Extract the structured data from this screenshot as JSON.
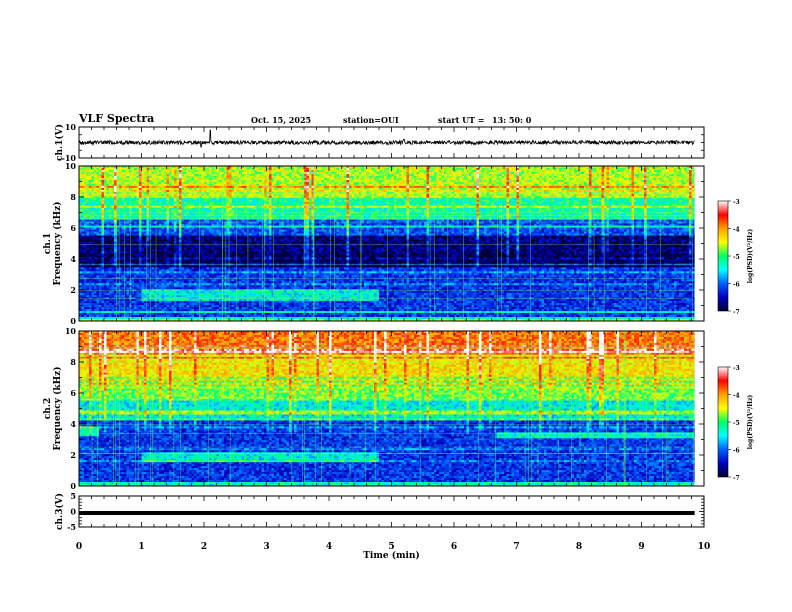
{
  "header": {
    "title": "VLF Spectra",
    "date": "Oct. 15, 2025",
    "station_label": "station=OUI",
    "start_label": "start UT =",
    "start_time": "13: 50: 0"
  },
  "colorbar": {
    "label": "log(PSD)(V²/Hz)",
    "ticks": [
      "-3",
      "-4",
      "-5",
      "-6",
      "-7"
    ],
    "colors": [
      "#ffffff",
      "#ff0000",
      "#ffa000",
      "#ffff00",
      "#00ff60",
      "#00ffff",
      "#0060ff",
      "#0000c0",
      "#000030"
    ]
  },
  "chart_data": [
    {
      "type": "line",
      "name": "ch1-waveform",
      "ylabel": "ch.1(V)",
      "ylim": [
        -10,
        10
      ],
      "y_tick_labels": [
        "10",
        "-10"
      ],
      "xlim": [
        0,
        10
      ],
      "baseline_value": 0,
      "noise_amplitude": 1.2,
      "spikes": [
        {
          "x": 2.1,
          "y": 8
        },
        {
          "x": 1.95,
          "y": -3
        },
        {
          "x": 5.2,
          "y": 2
        }
      ]
    },
    {
      "type": "heatmap",
      "name": "ch1-spectrogram",
      "ylabel": "ch.1 Frequency (kHz)",
      "ylim": [
        0,
        10
      ],
      "xlim": [
        0,
        10
      ],
      "y_tick_labels": [
        "0",
        "2",
        "4",
        "6",
        "8",
        "10"
      ],
      "z_range": [
        -7,
        -3
      ],
      "bands": [
        {
          "f_low": 8.0,
          "f_high": 10.0,
          "log_psd": -4.9
        },
        {
          "f_low": 6.5,
          "f_high": 8.0,
          "log_psd": -5.4
        },
        {
          "f_low": 5.5,
          "f_high": 6.5,
          "log_psd": -6.2
        },
        {
          "f_low": 4.3,
          "f_high": 5.5,
          "log_psd": -6.8
        },
        {
          "f_low": 3.5,
          "f_high": 4.3,
          "log_psd": -6.9
        },
        {
          "f_low": 0.3,
          "f_high": 3.5,
          "log_psd": -6.3
        },
        {
          "f_low": 0.0,
          "f_high": 0.3,
          "log_psd": -5.5
        }
      ],
      "features": [
        {
          "x_start": 1.0,
          "x_end": 4.8,
          "f_low": 1.3,
          "f_high": 2.1,
          "log_psd": -5.6
        }
      ]
    },
    {
      "type": "heatmap",
      "name": "ch2-spectrogram",
      "ylabel": "ch.2 Frequency (kHz)",
      "ylim": [
        0,
        10
      ],
      "xlim": [
        0,
        10
      ],
      "y_tick_labels": [
        "0",
        "2",
        "4",
        "6",
        "8",
        "10"
      ],
      "z_range": [
        -7,
        -3
      ],
      "bands": [
        {
          "f_low": 8.5,
          "f_high": 10.0,
          "log_psd": -4.1
        },
        {
          "f_low": 7.0,
          "f_high": 8.5,
          "log_psd": -4.6
        },
        {
          "f_low": 5.5,
          "f_high": 7.0,
          "log_psd": -5.1
        },
        {
          "f_low": 4.2,
          "f_high": 5.5,
          "log_psd": -5.6
        },
        {
          "f_low": 0.3,
          "f_high": 4.2,
          "log_psd": -6.3
        },
        {
          "f_low": 0.0,
          "f_high": 0.3,
          "log_psd": -5.5
        }
      ],
      "features": [
        {
          "x_start": 0.0,
          "x_end": 0.3,
          "f_low": 3.2,
          "f_high": 3.8,
          "log_psd": -5.5
        },
        {
          "x_start": 1.0,
          "x_end": 4.8,
          "f_low": 1.6,
          "f_high": 2.2,
          "log_psd": -5.6
        },
        {
          "x_start": 6.7,
          "x_end": 9.85,
          "f_low": 3.1,
          "f_high": 3.5,
          "log_psd": -5.5
        }
      ]
    },
    {
      "type": "line",
      "name": "ch3-waveform",
      "ylabel": "ch.3(V)",
      "ylim": [
        -5,
        5
      ],
      "y_tick_labels": [
        "5",
        "0",
        "-5"
      ],
      "xlim": [
        0,
        10
      ],
      "baseline_value": -0.5
    }
  ],
  "x_axis": {
    "label": "Time (min)",
    "range": [
      0,
      10
    ],
    "tick_labels": [
      "0",
      "1",
      "2",
      "3",
      "4",
      "5",
      "6",
      "7",
      "8",
      "9",
      "10"
    ]
  }
}
